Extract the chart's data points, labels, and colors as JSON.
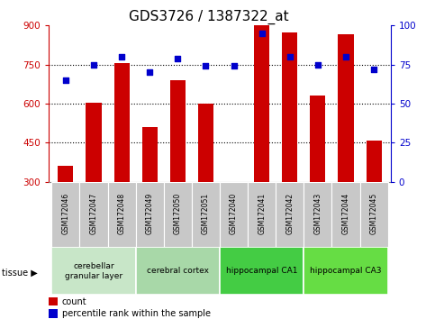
{
  "title": "GDS3726 / 1387322_at",
  "samples": [
    "GSM172046",
    "GSM172047",
    "GSM172048",
    "GSM172049",
    "GSM172050",
    "GSM172051",
    "GSM172040",
    "GSM172041",
    "GSM172042",
    "GSM172043",
    "GSM172044",
    "GSM172045"
  ],
  "counts": [
    360,
    605,
    755,
    510,
    690,
    600,
    300,
    900,
    875,
    630,
    868,
    460
  ],
  "percentiles": [
    65,
    75,
    80,
    70,
    79,
    74,
    74,
    95,
    80,
    75,
    80,
    72
  ],
  "ymin": 300,
  "ymax": 900,
  "y2min": 0,
  "y2max": 100,
  "yticks": [
    300,
    450,
    600,
    750,
    900
  ],
  "y2ticks": [
    0,
    25,
    50,
    75,
    100
  ],
  "bar_color": "#cc0000",
  "dot_color": "#0000cc",
  "groups": [
    {
      "label": "cerebellar\ngranular layer",
      "start": 0,
      "end": 3
    },
    {
      "label": "cerebral cortex",
      "start": 3,
      "end": 6
    },
    {
      "label": "hippocampal CA1",
      "start": 6,
      "end": 9
    },
    {
      "label": "hippocampal CA3",
      "start": 9,
      "end": 12
    }
  ],
  "group_colors": [
    "#c8e6c8",
    "#a8d8a8",
    "#44cc44",
    "#66dd44"
  ],
  "sample_box_color": "#c8c8c8",
  "xlabel_color": "#cc0000",
  "ylabel_right_color": "#0000cc",
  "legend_count_label": "count",
  "legend_percentile_label": "percentile rank within the sample",
  "bar_width": 0.55,
  "title_fontsize": 11,
  "tick_fontsize": 7.5,
  "sample_fontsize": 5.5,
  "group_fontsize": 6.5,
  "legend_fontsize": 7
}
